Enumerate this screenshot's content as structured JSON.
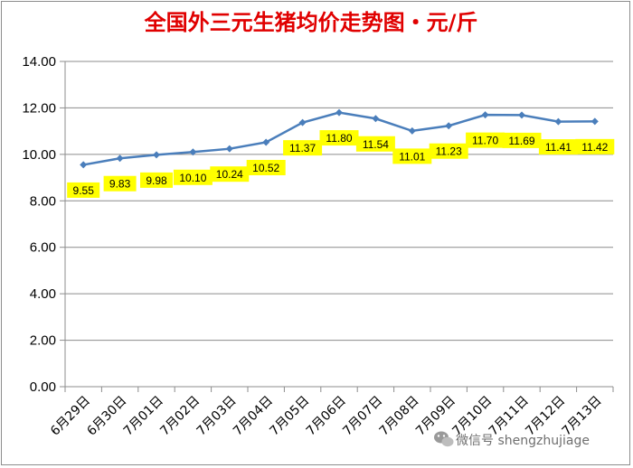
{
  "chart_data": {
    "type": "line",
    "title": "全国外三元生猪均价走势图・元/斤",
    "categories": [
      "6月29日",
      "6月30日",
      "7月01日",
      "7月02日",
      "7月03日",
      "7月04日",
      "7月05日",
      "7月06日",
      "7月07日",
      "7月08日",
      "7月09日",
      "7月10日",
      "7月11日",
      "7月12日",
      "7月13日"
    ],
    "series": [
      {
        "values": [
          9.55,
          9.83,
          9.98,
          10.1,
          10.24,
          10.52,
          11.37,
          11.8,
          11.54,
          11.01,
          11.23,
          11.7,
          11.69,
          11.41,
          11.42
        ],
        "labels": [
          "9.55",
          "9.83",
          "9.98",
          "10.10",
          "10.24",
          "10.52",
          "11.37",
          "11.80",
          "11.54",
          "11.01",
          "11.23",
          "11.70",
          "11.69",
          "11.41",
          "11.42"
        ]
      }
    ],
    "y_ticks": [
      "0.00",
      "2.00",
      "4.00",
      "6.00",
      "8.00",
      "10.00",
      "12.00",
      "14.00"
    ],
    "ylim": [
      0,
      14
    ],
    "grid": true,
    "legend": "none",
    "colors": {
      "line": "#4a7ebb",
      "marker": "#4a7ebb",
      "label_bg": "#ffff00",
      "grid": "#8c8c8c",
      "title": "#e00000"
    }
  },
  "watermark": {
    "icon": "wechat-icon",
    "text": "微信号 shengzhujiage"
  }
}
